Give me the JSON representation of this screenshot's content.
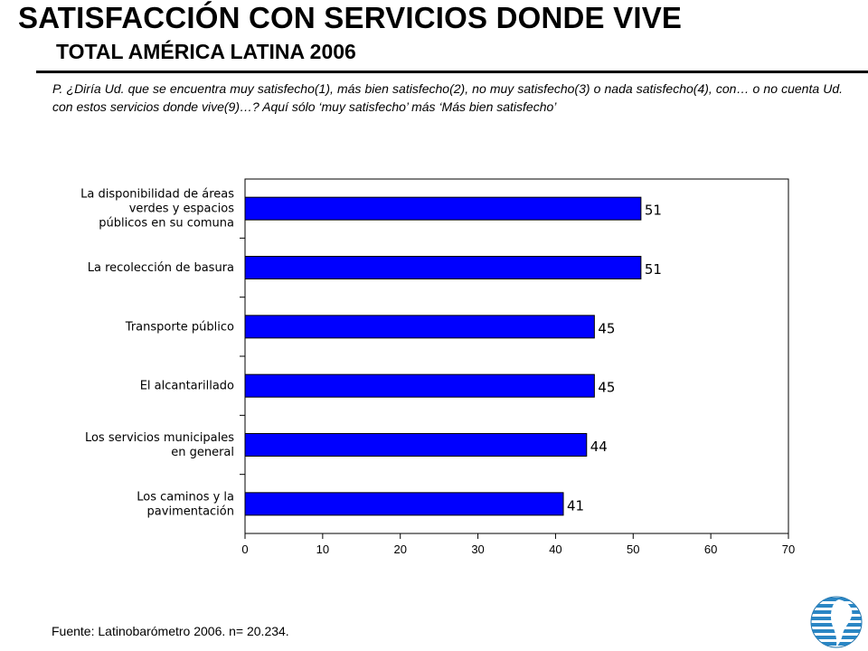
{
  "header": {
    "title": "SATISFACCIÓN CON SERVICIOS DONDE VIVE",
    "subtitle": "TOTAL AMÉRICA LATINA 2006",
    "question": "P. ¿Diría Ud. que se encuentra muy satisfecho(1), más bien satisfecho(2), no muy satisfecho(3) o nada satisfecho(4), con… o no cuenta Ud. con estos servicios donde vive(9)…? Aquí sólo ‘muy satisfecho’ más ‘Más bien satisfecho’"
  },
  "footer": {
    "source": "Fuente:  Latinobarómetro  2006.  n= 20.234."
  },
  "logo": {
    "icon": "globe-logo-icon"
  },
  "chart_data": {
    "type": "bar",
    "orientation": "horizontal",
    "categories": [
      [
        "La disponibilidad de áreas",
        "verdes y espacios",
        "públicos en su comuna"
      ],
      [
        "La recolección de basura"
      ],
      [
        "Transporte público"
      ],
      [
        "El alcantarillado"
      ],
      [
        "Los servicios municipales",
        "en general"
      ],
      [
        "Los caminos y la",
        "pavimentación"
      ]
    ],
    "values": [
      51,
      51,
      45,
      45,
      44,
      41
    ],
    "xlim": [
      0,
      70
    ],
    "xticks": [
      "0",
      "10",
      "20",
      "30",
      "40",
      "50",
      "60",
      "70"
    ],
    "bar_color": "#0000ff",
    "grid": false,
    "legend": "none"
  }
}
